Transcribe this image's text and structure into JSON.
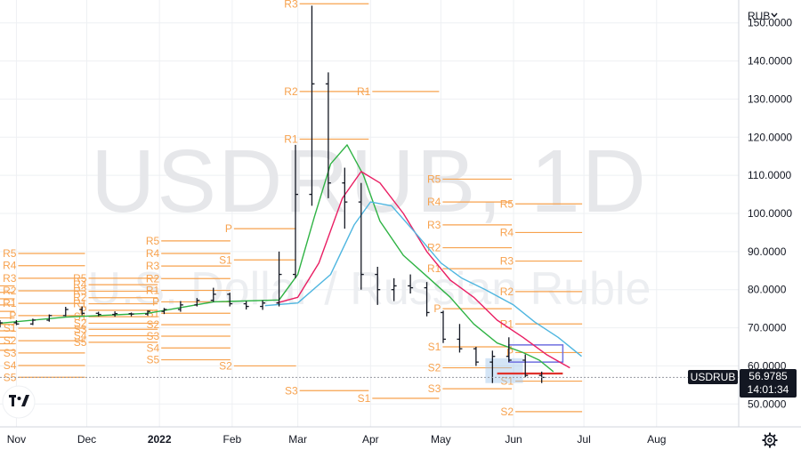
{
  "currency": "RUB",
  "watermark": {
    "symbol": "USDRUB, 1D",
    "description": "U.S. Dollar / Russian Ruble"
  },
  "last_price": {
    "symbol": "USDRUB",
    "price": "56.9785",
    "countdown": "14:01:34"
  },
  "icons": {
    "logo": "tradingview-logo-icon",
    "settings": "gear-icon",
    "currency_menu": "chevron-down-icon"
  },
  "colors": {
    "pivot": "#f7a24e",
    "candle": "#131722",
    "ma_fast": "#2fb344",
    "ma_mid": "#e91e63",
    "ma_slow": "#4fb6e0",
    "last_price_label": "#131722",
    "grid": "#eef0f3",
    "zone": "#9fc6ea",
    "red_line": "#e0322c",
    "blue_box": "#6f6fe0"
  },
  "chart_data": {
    "type": "candlestick",
    "xlabel": "",
    "ylabel": "",
    "y_ticks": [
      "50.0000",
      "60.0000",
      "70.0000",
      "80.0000",
      "90.0000",
      "100.0000",
      "110.0000",
      "120.0000",
      "130.0000",
      "140.0000",
      "150.0000"
    ],
    "x_ticks": [
      "Nov",
      "Dec",
      "2022",
      "Feb",
      "Mar",
      "Apr",
      "May",
      "Jun",
      "Jul",
      "Aug"
    ],
    "ylim": [
      44,
      156
    ],
    "x_domain": [
      "2021-10-25",
      "2022-09-05"
    ],
    "grid": true,
    "candles": [
      {
        "d": "2021-10-25",
        "o": 71.0,
        "h": 72.0,
        "l": 70.1,
        "c": 71.3
      },
      {
        "d": "2021-11-01",
        "o": 71.3,
        "h": 72.0,
        "l": 70.7,
        "c": 71.0
      },
      {
        "d": "2021-11-08",
        "o": 71.0,
        "h": 72.4,
        "l": 70.7,
        "c": 72.0
      },
      {
        "d": "2021-11-15",
        "o": 72.0,
        "h": 73.5,
        "l": 71.6,
        "c": 73.2
      },
      {
        "d": "2021-11-22",
        "o": 73.2,
        "h": 75.5,
        "l": 73.0,
        "c": 74.8
      },
      {
        "d": "2021-11-29",
        "o": 74.8,
        "h": 75.6,
        "l": 73.3,
        "c": 73.8
      },
      {
        "d": "2021-12-06",
        "o": 73.8,
        "h": 74.2,
        "l": 73.0,
        "c": 73.5
      },
      {
        "d": "2021-12-13",
        "o": 73.5,
        "h": 74.3,
        "l": 72.9,
        "c": 73.7
      },
      {
        "d": "2021-12-20",
        "o": 73.7,
        "h": 74.0,
        "l": 73.0,
        "c": 73.6
      },
      {
        "d": "2021-12-27",
        "o": 73.6,
        "h": 74.6,
        "l": 73.2,
        "c": 74.3
      },
      {
        "d": "2022-01-03",
        "o": 74.3,
        "h": 75.2,
        "l": 73.6,
        "c": 74.8
      },
      {
        "d": "2022-01-10",
        "o": 74.8,
        "h": 77.0,
        "l": 74.2,
        "c": 76.0
      },
      {
        "d": "2022-01-17",
        "o": 76.0,
        "h": 77.8,
        "l": 75.6,
        "c": 77.2
      },
      {
        "d": "2022-01-24",
        "o": 77.2,
        "h": 80.5,
        "l": 76.8,
        "c": 78.8
      },
      {
        "d": "2022-01-31",
        "o": 78.8,
        "h": 79.2,
        "l": 75.6,
        "c": 76.3
      },
      {
        "d": "2022-02-07",
        "o": 76.3,
        "h": 77.0,
        "l": 74.8,
        "c": 75.6
      },
      {
        "d": "2022-02-14",
        "o": 75.6,
        "h": 77.2,
        "l": 74.7,
        "c": 76.5
      },
      {
        "d": "2022-02-21",
        "o": 76.5,
        "h": 90.0,
        "l": 75.6,
        "c": 84.0
      },
      {
        "d": "2022-02-28",
        "o": 84.0,
        "h": 118.0,
        "l": 83.0,
        "c": 105.0
      },
      {
        "d": "2022-03-07",
        "o": 105.0,
        "h": 154.5,
        "l": 102.0,
        "c": 134.0
      },
      {
        "d": "2022-03-14",
        "o": 134.0,
        "h": 137.0,
        "l": 104.0,
        "c": 108.0
      },
      {
        "d": "2022-03-21",
        "o": 108.0,
        "h": 112.0,
        "l": 96.0,
        "c": 103.0
      },
      {
        "d": "2022-03-28",
        "o": 103.0,
        "h": 108.0,
        "l": 80.0,
        "c": 84.0
      },
      {
        "d": "2022-04-04",
        "o": 84.0,
        "h": 86.0,
        "l": 76.0,
        "c": 80.0
      },
      {
        "d": "2022-04-11",
        "o": 80.0,
        "h": 83.0,
        "l": 77.0,
        "c": 81.0
      },
      {
        "d": "2022-04-18",
        "o": 81.0,
        "h": 84.0,
        "l": 79.0,
        "c": 80.5
      },
      {
        "d": "2022-04-25",
        "o": 80.5,
        "h": 82.0,
        "l": 73.0,
        "c": 74.0
      },
      {
        "d": "2022-05-02",
        "o": 74.0,
        "h": 74.5,
        "l": 66.0,
        "c": 67.0
      },
      {
        "d": "2022-05-09",
        "o": 67.0,
        "h": 71.0,
        "l": 63.5,
        "c": 64.5
      },
      {
        "d": "2022-05-16",
        "o": 64.5,
        "h": 65.0,
        "l": 60.0,
        "c": 61.0
      },
      {
        "d": "2022-05-23",
        "o": 61.0,
        "h": 64.0,
        "l": 55.5,
        "c": 62.5
      },
      {
        "d": "2022-05-30",
        "o": 62.5,
        "h": 67.5,
        "l": 61.0,
        "c": 61.5
      },
      {
        "d": "2022-06-06",
        "o": 61.5,
        "h": 63.0,
        "l": 57.0,
        "c": 57.5
      },
      {
        "d": "2022-06-13",
        "o": 57.5,
        "h": 58.5,
        "l": 55.5,
        "c": 56.98
      }
    ],
    "moving_averages": [
      {
        "name": "MA fast",
        "color": "#2fb344",
        "points": [
          [
            "2021-10-25",
            71.2
          ],
          [
            "2021-11-22",
            72.8
          ],
          [
            "2021-12-27",
            73.8
          ],
          [
            "2022-01-24",
            76.8
          ],
          [
            "2022-02-21",
            77.3
          ],
          [
            "2022-03-01",
            84
          ],
          [
            "2022-03-08",
            99
          ],
          [
            "2022-03-15",
            113
          ],
          [
            "2022-03-22",
            118
          ],
          [
            "2022-03-29",
            110
          ],
          [
            "2022-04-05",
            98
          ],
          [
            "2022-04-15",
            89
          ],
          [
            "2022-04-25",
            83.5
          ],
          [
            "2022-05-05",
            78
          ],
          [
            "2022-05-15",
            71
          ],
          [
            "2022-05-25",
            66
          ],
          [
            "2022-06-05",
            63.5
          ],
          [
            "2022-06-12",
            61.5
          ],
          [
            "2022-06-18",
            58.5
          ]
        ]
      },
      {
        "name": "MA mid",
        "color": "#e91e63",
        "points": [
          [
            "2022-02-20",
            76.5
          ],
          [
            "2022-03-01",
            78
          ],
          [
            "2022-03-10",
            87
          ],
          [
            "2022-03-20",
            104
          ],
          [
            "2022-03-28",
            111
          ],
          [
            "2022-04-05",
            108
          ],
          [
            "2022-04-15",
            100
          ],
          [
            "2022-04-25",
            90
          ],
          [
            "2022-05-05",
            82.5
          ],
          [
            "2022-05-15",
            78
          ],
          [
            "2022-05-25",
            72
          ],
          [
            "2022-06-05",
            67.5
          ],
          [
            "2022-06-15",
            63
          ],
          [
            "2022-06-25",
            59.5
          ]
        ]
      },
      {
        "name": "MA slow",
        "color": "#4fb6e0",
        "points": [
          [
            "2022-02-15",
            75.8
          ],
          [
            "2022-03-01",
            76.5
          ],
          [
            "2022-03-15",
            84
          ],
          [
            "2022-03-25",
            97
          ],
          [
            "2022-04-01",
            103
          ],
          [
            "2022-04-10",
            102
          ],
          [
            "2022-04-20",
            95
          ],
          [
            "2022-05-01",
            87
          ],
          [
            "2022-05-10",
            83
          ],
          [
            "2022-05-20",
            80
          ],
          [
            "2022-06-01",
            76
          ],
          [
            "2022-06-10",
            71.5
          ],
          [
            "2022-06-20",
            67.5
          ],
          [
            "2022-06-30",
            62.5
          ]
        ]
      }
    ],
    "pivot_levels": [
      {
        "start": "2021-10-25",
        "end": "2021-11-01",
        "levels": [
          [
            "R5",
            81.0
          ],
          [
            "R4",
            79.3
          ],
          [
            "R3",
            77.6
          ],
          [
            "R2",
            76.0
          ],
          [
            "R1",
            74.3
          ],
          [
            "P",
            72.6
          ],
          [
            "S1",
            70.9
          ],
          [
            "S2",
            69.2
          ],
          [
            "S3",
            67.5
          ],
          [
            "S4",
            65.8
          ],
          [
            "S5",
            64.1
          ]
        ]
      },
      {
        "start": "2021-11-01",
        "end": "2021-12-01",
        "levels": [
          [
            "R5",
            89.5
          ],
          [
            "R4",
            86.3
          ],
          [
            "R3",
            83.0
          ],
          [
            "R2",
            79.7
          ],
          [
            "R1",
            76.4
          ],
          [
            "P",
            73.2
          ],
          [
            "S1",
            69.9
          ],
          [
            "S2",
            66.6
          ],
          [
            "S3",
            63.4
          ],
          [
            "S4",
            60.1
          ],
          [
            "S5",
            57.0
          ]
        ]
      },
      {
        "start": "2021-12-01",
        "end": "2022-01-01",
        "levels": [
          [
            "R5",
            83.0
          ],
          [
            "R4",
            81.3
          ],
          [
            "R3",
            79.6
          ],
          [
            "R2",
            77.9
          ],
          [
            "R1",
            76.3
          ],
          [
            "P",
            74.6
          ],
          [
            "S1",
            72.9
          ],
          [
            "S2",
            71.2
          ],
          [
            "S3",
            69.6
          ],
          [
            "S4",
            67.9
          ],
          [
            "S5",
            66.2
          ]
        ]
      },
      {
        "start": "2022-01-01",
        "end": "2022-02-01",
        "levels": [
          [
            "R5",
            92.8
          ],
          [
            "R4",
            89.5
          ],
          [
            "R3",
            86.2
          ],
          [
            "R2",
            82.9
          ],
          [
            "R1",
            79.8
          ],
          [
            "P",
            76.8
          ],
          [
            "S1",
            73.8
          ],
          [
            "S2",
            70.8
          ],
          [
            "S3",
            67.8
          ],
          [
            "S4",
            64.7
          ],
          [
            "S5",
            61.6
          ]
        ]
      },
      {
        "start": "2022-02-01",
        "end": "2022-03-01",
        "levels": [
          [
            "P",
            96.0
          ],
          [
            "S1",
            87.8
          ],
          [
            "S2",
            60.0
          ]
        ]
      },
      {
        "start": "2022-03-01",
        "end": "2022-04-01",
        "levels": [
          [
            "R3",
            155.0
          ],
          [
            "R2",
            132.0
          ],
          [
            "R1",
            119.5
          ],
          [
            "S3",
            53.5
          ]
        ]
      },
      {
        "start": "2022-04-01",
        "end": "2022-05-01",
        "levels": [
          [
            "R1",
            132.0
          ],
          [
            "S1",
            51.5
          ]
        ]
      },
      {
        "start": "2022-05-01",
        "end": "2022-06-01",
        "levels": [
          [
            "R5",
            109.0
          ],
          [
            "R4",
            103.0
          ],
          [
            "R3",
            97.0
          ],
          [
            "R2",
            91.0
          ],
          [
            "R1",
            85.5
          ],
          [
            "P",
            75.0
          ],
          [
            "S1",
            65.0
          ],
          [
            "S2",
            59.5
          ],
          [
            "S3",
            54.0
          ]
        ]
      },
      {
        "start": "2022-06-01",
        "end": "2022-07-01",
        "levels": [
          [
            "R5",
            102.5
          ],
          [
            "R4",
            95.0
          ],
          [
            "R3",
            87.5
          ],
          [
            "R2",
            79.5
          ],
          [
            "R1",
            71.0
          ],
          [
            "P",
            63.5
          ],
          [
            "S1",
            56.0
          ],
          [
            "S2",
            48.0
          ]
        ]
      }
    ],
    "annotations": [
      {
        "type": "zone",
        "start": "2022-05-20",
        "end": "2022-06-05",
        "y1": 55.5,
        "y2": 62.0,
        "color": "#9fc6ea"
      },
      {
        "type": "box",
        "start": "2022-05-30",
        "end": "2022-06-22",
        "y1": 61.0,
        "y2": 65.5,
        "color": "#6f6fe0"
      },
      {
        "type": "line",
        "start": "2022-05-25",
        "end": "2022-06-22",
        "y": 58.0,
        "color": "#e0322c"
      }
    ]
  }
}
